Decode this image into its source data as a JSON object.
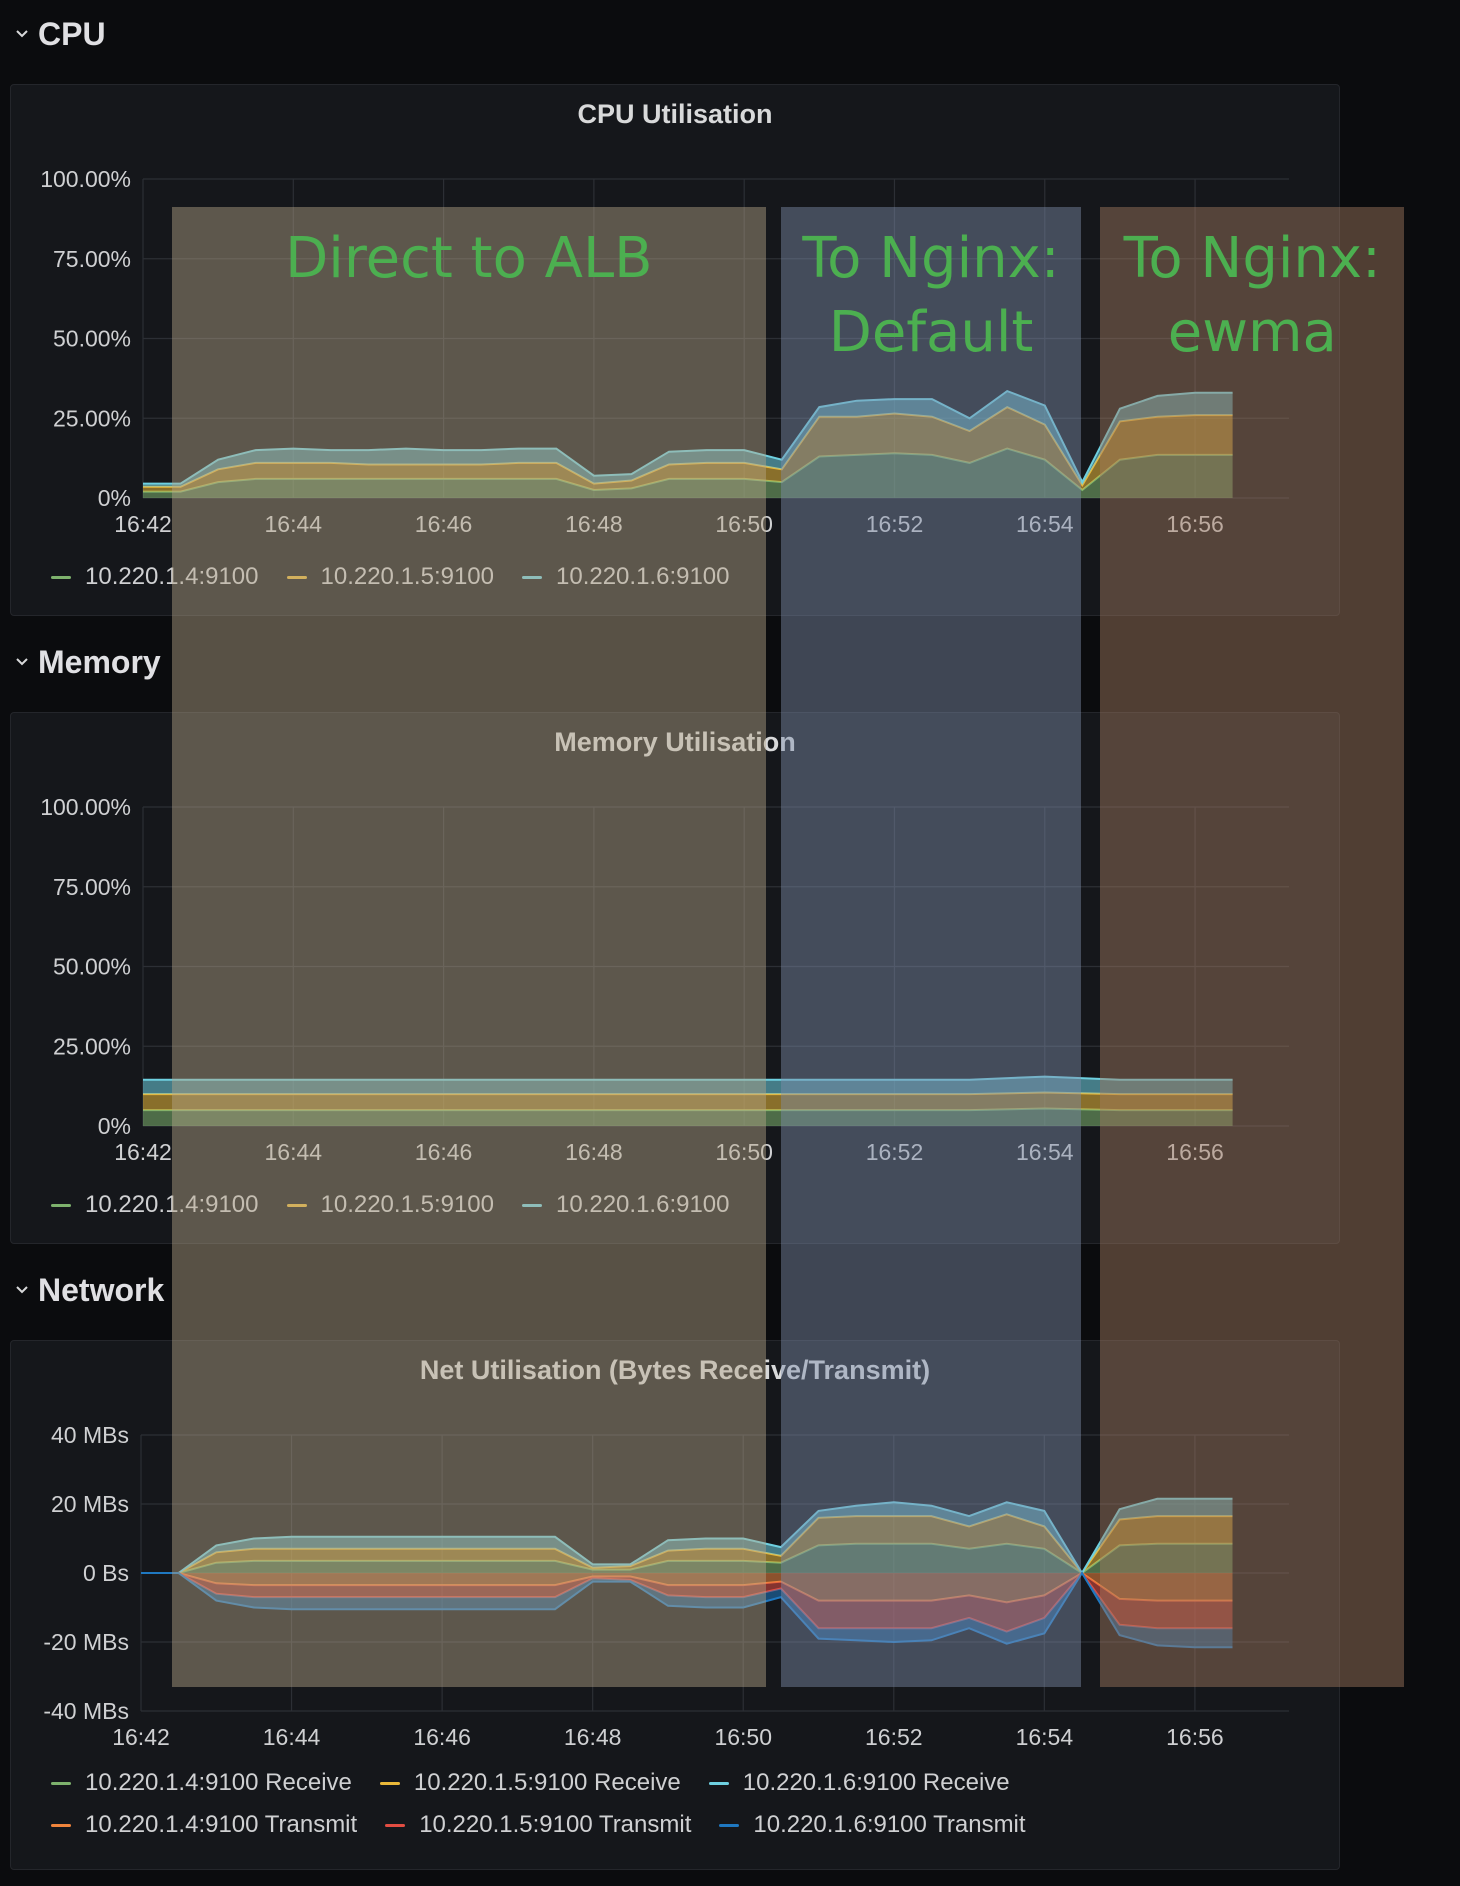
{
  "rows": {
    "cpu": "CPU",
    "memory": "Memory",
    "network": "Network"
  },
  "x_ticks": [
    "16:42",
    "16:44",
    "16:46",
    "16:48",
    "16:50",
    "16:52",
    "16:54",
    "16:56"
  ],
  "overlays": [
    {
      "label": "Direct to ALB",
      "color": "#b5a78a",
      "start": "16:42.4",
      "end": "16:50.3"
    },
    {
      "label": "To Nginx:\nDefault",
      "color": "#7f8faa",
      "start": "16:50.5",
      "end": "16:54.5"
    },
    {
      "label": "To Nginx:\newma",
      "color": "#a47d62",
      "start": "16:54.75",
      "end": "16:58.8"
    }
  ],
  "chart_data": [
    {
      "type": "area",
      "title": "CPU Utilisation",
      "stacked": true,
      "x": [
        "16:42",
        "16:42.5",
        "16:43",
        "16:43.5",
        "16:44",
        "16:44.5",
        "16:45",
        "16:45.5",
        "16:46",
        "16:46.5",
        "16:47",
        "16:47.5",
        "16:48",
        "16:48.5",
        "16:49",
        "16:49.5",
        "16:50",
        "16:50.5",
        "16:51",
        "16:51.5",
        "16:52",
        "16:52.5",
        "16:53",
        "16:53.5",
        "16:54",
        "16:54.5",
        "16:55",
        "16:55.5",
        "16:56",
        "16:56.5"
      ],
      "ylim": [
        0,
        100
      ],
      "y_ticks": [
        "0%",
        "25.00%",
        "50.00%",
        "75.00%",
        "100.00%"
      ],
      "series": [
        {
          "name": "10.220.1.4:9100",
          "color": "#7eb26d",
          "values": [
            2,
            2,
            5,
            6,
            6,
            6,
            6,
            6,
            6,
            6,
            6,
            6,
            2.5,
            3,
            6,
            6,
            6,
            5,
            13,
            13.5,
            14,
            13.5,
            11,
            15.5,
            12,
            2.5,
            12,
            13.5,
            13.5,
            13.5
          ]
        },
        {
          "name": "10.220.1.5:9100",
          "color": "#eab839",
          "values": [
            1.5,
            1.5,
            4,
            5,
            5,
            5,
            4.5,
            4.5,
            4.5,
            4.5,
            5,
            5,
            2,
            2.5,
            4.5,
            5,
            5,
            4,
            12.5,
            12,
            12.5,
            12,
            10,
            13,
            11,
            1.5,
            12,
            12,
            12.5,
            12.5
          ]
        },
        {
          "name": "10.220.1.6:9100",
          "color": "#6ed0e0",
          "values": [
            1,
            1,
            3,
            4,
            4.5,
            4,
            4.5,
            5,
            4.5,
            4.5,
            4.5,
            4.5,
            2.5,
            2,
            4,
            4,
            4,
            3,
            3,
            5,
            4.5,
            5.5,
            4,
            5,
            6,
            1,
            4,
            6.5,
            7,
            7
          ]
        }
      ]
    },
    {
      "type": "area",
      "title": "Memory Utilisation",
      "stacked": true,
      "x": [
        "16:42",
        "16:43",
        "16:44",
        "16:45",
        "16:46",
        "16:47",
        "16:48",
        "16:49",
        "16:50",
        "16:51",
        "16:52",
        "16:53",
        "16:54",
        "16:55",
        "16:56",
        "16:56.5"
      ],
      "ylim": [
        0,
        100
      ],
      "y_ticks": [
        "0%",
        "25.00%",
        "50.00%",
        "75.00%",
        "100.00%"
      ],
      "series": [
        {
          "name": "10.220.1.4:9100",
          "color": "#7eb26d",
          "values": [
            5,
            5,
            5,
            5,
            5,
            5,
            5,
            5,
            5,
            5,
            5,
            5,
            5.5,
            5,
            5,
            5
          ]
        },
        {
          "name": "10.220.1.5:9100",
          "color": "#eab839",
          "values": [
            5,
            5,
            5,
            5,
            5,
            5,
            5,
            5,
            5,
            5,
            5,
            5,
            5,
            5,
            5,
            5
          ]
        },
        {
          "name": "10.220.1.6:9100",
          "color": "#6ed0e0",
          "values": [
            4.5,
            4.5,
            4.5,
            4.5,
            4.5,
            4.5,
            4.5,
            4.5,
            4.5,
            4.5,
            4.5,
            4.5,
            5,
            4.5,
            4.5,
            4.5
          ]
        }
      ]
    },
    {
      "type": "area",
      "title": "Net Utilisation (Bytes Receive/Transmit)",
      "stacked": true,
      "x": [
        "16:42",
        "16:42.5",
        "16:43",
        "16:43.5",
        "16:44",
        "16:44.5",
        "16:45",
        "16:45.5",
        "16:46",
        "16:46.5",
        "16:47",
        "16:47.5",
        "16:48",
        "16:48.5",
        "16:49",
        "16:49.5",
        "16:50",
        "16:50.5",
        "16:51",
        "16:51.5",
        "16:52",
        "16:52.5",
        "16:53",
        "16:53.5",
        "16:54",
        "16:54.5",
        "16:55",
        "16:55.5",
        "16:56",
        "16:56.5"
      ],
      "ylim": [
        -40,
        40
      ],
      "y_ticks": [
        "-40 MBs",
        "-20 MBs",
        "0 Bs",
        "20 MBs",
        "40 MBs"
      ],
      "series": [
        {
          "name": "10.220.1.4:9100 Receive",
          "color": "#7eb26d",
          "direction": "receive",
          "values": [
            0,
            0,
            3,
            3.5,
            3.5,
            3.5,
            3.5,
            3.5,
            3.5,
            3.5,
            3.5,
            3.5,
            1,
            1,
            3.5,
            3.5,
            3.5,
            3,
            8,
            8.5,
            8.5,
            8.5,
            7,
            8.5,
            7,
            0,
            8,
            8.5,
            8.5,
            8.5
          ]
        },
        {
          "name": "10.220.1.5:9100 Receive",
          "color": "#eab839",
          "values": [
            0,
            0,
            3,
            3.5,
            3.5,
            3.5,
            3.5,
            3.5,
            3.5,
            3.5,
            3.5,
            3.5,
            0.5,
            1,
            3,
            3.5,
            3.5,
            2,
            8,
            8,
            8,
            8,
            6.5,
            8.5,
            6.5,
            0,
            7.5,
            8,
            8,
            8
          ]
        },
        {
          "name": "10.220.1.6:9100 Receive",
          "color": "#6ed0e0",
          "values": [
            0,
            0,
            2,
            3,
            3.5,
            3.5,
            3.5,
            3.5,
            3.5,
            3.5,
            3.5,
            3.5,
            1,
            0.5,
            3,
            3,
            3,
            2.5,
            2,
            3,
            4,
            3,
            3,
            3.5,
            4.5,
            0,
            3,
            5,
            5,
            5
          ]
        },
        {
          "name": "10.220.1.4:9100 Transmit",
          "color": "#ef843c",
          "values": [
            0,
            0,
            -3,
            -3.5,
            -3.5,
            -3.5,
            -3.5,
            -3.5,
            -3.5,
            -3.5,
            -3.5,
            -3.5,
            -1,
            -1,
            -3.5,
            -3.5,
            -3.5,
            -2.5,
            -8,
            -8,
            -8,
            -8,
            -6.5,
            -8.5,
            -6.5,
            0,
            -7.5,
            -8,
            -8,
            -8
          ]
        },
        {
          "name": "10.220.1.5:9100 Transmit",
          "color": "#e24d42",
          "values": [
            0,
            0,
            -3,
            -3.5,
            -3.5,
            -3.5,
            -3.5,
            -3.5,
            -3.5,
            -3.5,
            -3.5,
            -3.5,
            -0.5,
            -1,
            -3,
            -3.5,
            -3.5,
            -2,
            -8,
            -8,
            -8,
            -8,
            -6.5,
            -8.5,
            -6.5,
            0,
            -7.5,
            -8,
            -8,
            -8
          ]
        },
        {
          "name": "10.220.1.6:9100 Transmit",
          "color": "#1f78c1",
          "values": [
            0,
            0,
            -2,
            -3,
            -3.5,
            -3.5,
            -3.5,
            -3.5,
            -3.5,
            -3.5,
            -3.5,
            -3.5,
            -1,
            -0.5,
            -3,
            -3,
            -3,
            -2.5,
            -3,
            -3.5,
            -4,
            -3.5,
            -3,
            -3.5,
            -4.5,
            0,
            -3,
            -5,
            -5.5,
            -5.5
          ]
        }
      ]
    }
  ]
}
